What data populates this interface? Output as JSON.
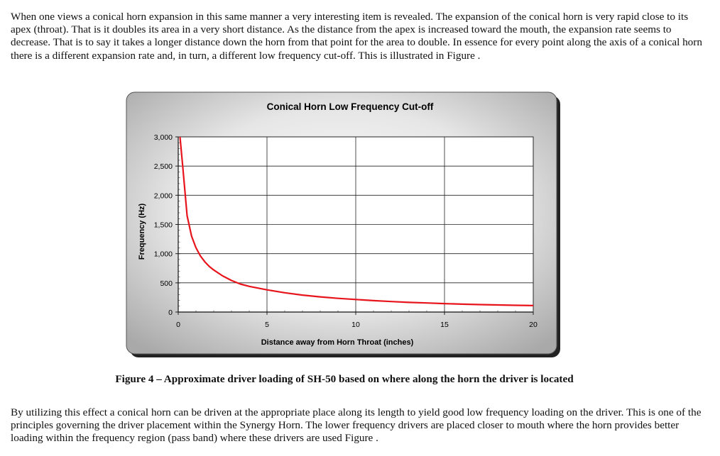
{
  "paragraph_1": "When one views a conical horn expansion in this same manner a very interesting item is revealed.  The expansion of the conical horn is very rapid close to its apex (throat).  That is it doubles its area in a very short distance.  As the distance from the apex is increased toward the mouth, the expansion rate seems to decrease.  That is to say it takes a longer distance down the horn from that point for the area to double.  In essence for every point along the axis of a conical horn there is a different expansion rate and, in turn, a different low frequency cut-off.  This is illustrated in Figure .",
  "caption": "Figure 4 – Approximate driver loading of SH-50 based on where along the horn the driver is located",
  "paragraph_2": "By utilizing this effect a conical horn can be driven at the appropriate place along its length to yield good low frequency loading on the driver. This is one of the principles governing the driver placement within the Synergy Horn.  The lower frequency drivers are placed closer to mouth where the horn provides better loading within the frequency region (pass band) where these drivers are used Figure .",
  "chart_data": {
    "type": "line",
    "title": "Conical Horn Low Frequency Cut-off",
    "xlabel": "Distance away from Horn Throat (inches)",
    "ylabel": "Frequency (Hz)",
    "xlim": [
      0,
      20
    ],
    "ylim": [
      0,
      3000
    ],
    "x_ticks": [
      "0",
      "5",
      "10",
      "15",
      "20"
    ],
    "y_ticks": [
      "0",
      "500",
      "1,000",
      "1,500",
      "2,000",
      "2,500",
      "3,000"
    ],
    "grid": true,
    "line_color": "#e8141c",
    "series": [
      {
        "x": [
          0.1,
          0.25,
          0.5,
          0.75,
          1,
          1.25,
          1.5,
          1.75,
          2,
          2.5,
          3,
          3.5,
          4,
          5,
          6,
          7,
          8,
          9,
          10,
          11,
          12,
          13,
          14,
          15,
          16,
          17,
          18,
          19,
          20
        ],
        "y": [
          3000,
          2500,
          1650,
          1300,
          1100,
          960,
          860,
          780,
          720,
          620,
          540,
          480,
          440,
          380,
          330,
          290,
          260,
          235,
          215,
          195,
          180,
          165,
          155,
          145,
          135,
          128,
          121,
          115,
          110
        ]
      }
    ]
  }
}
